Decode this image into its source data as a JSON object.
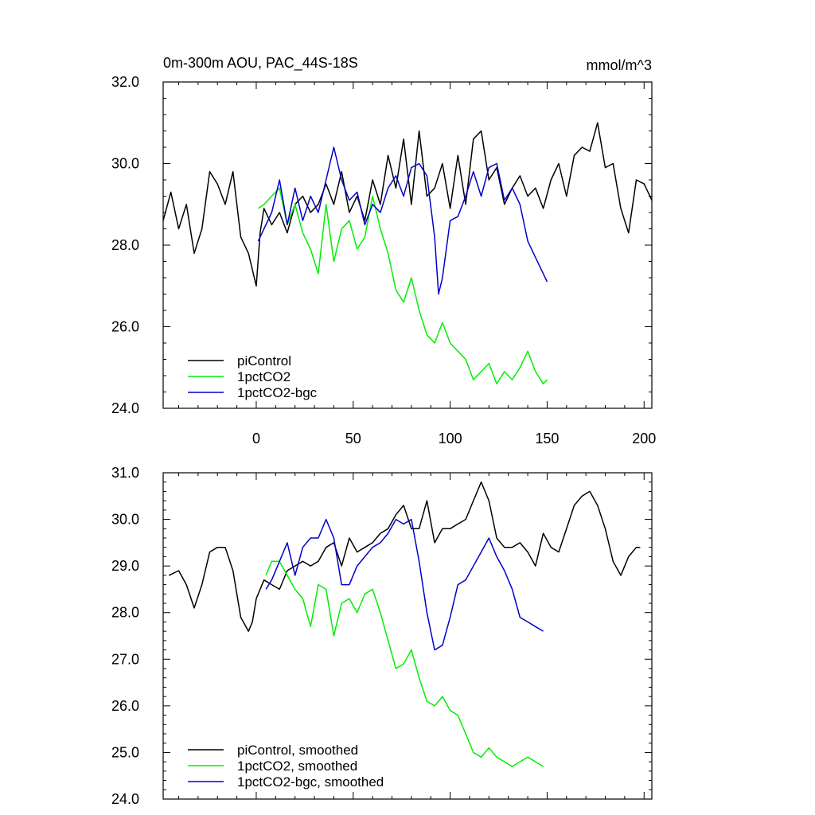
{
  "colors": {
    "piControl": "#000000",
    "1pctCO2": "#00ee00",
    "1pctCO2-bgc": "#0000cc"
  },
  "chart_data": [
    {
      "type": "line",
      "title": "0m-300m AOU, PAC_44S-18S",
      "units": "mmol/m^3",
      "xlabel": "",
      "ylabel": "",
      "xlim": [
        -48,
        204
      ],
      "ylim": [
        24.0,
        32.0
      ],
      "yticks": [
        {
          "v": 24,
          "label": "24.0"
        },
        {
          "v": 26,
          "label": "26.0"
        },
        {
          "v": 28,
          "label": "28.0"
        },
        {
          "v": 30,
          "label": "30.0"
        },
        {
          "v": 32,
          "label": "32.0"
        }
      ],
      "xticks": [
        {
          "v": 0,
          "label": "0"
        },
        {
          "v": 50,
          "label": "50"
        },
        {
          "v": 100,
          "label": "100"
        },
        {
          "v": 150,
          "label": "150"
        },
        {
          "v": 200,
          "label": "200"
        }
      ],
      "legend_position": "bottom-left",
      "series": [
        {
          "name": "piControl",
          "color_key": "piControl",
          "x": [
            -48,
            -44,
            -40,
            -36,
            -32,
            -28,
            -24,
            -20,
            -16,
            -12,
            -8,
            -4,
            0,
            2,
            4,
            8,
            12,
            16,
            20,
            24,
            28,
            32,
            36,
            40,
            44,
            48,
            52,
            56,
            60,
            64,
            68,
            72,
            76,
            80,
            84,
            88,
            92,
            96,
            100,
            104,
            108,
            112,
            116,
            120,
            124,
            128,
            132,
            136,
            140,
            144,
            148,
            152,
            156,
            160,
            164,
            168,
            172,
            176,
            180,
            184,
            188,
            192,
            196,
            200,
            204
          ],
          "y": [
            28.6,
            29.3,
            28.4,
            29.0,
            27.8,
            28.4,
            29.8,
            29.5,
            29.0,
            29.8,
            28.2,
            27.8,
            27.0,
            28.3,
            28.9,
            28.5,
            28.8,
            28.3,
            29.0,
            29.2,
            28.8,
            29.0,
            29.5,
            29.0,
            29.8,
            28.8,
            29.2,
            28.6,
            29.6,
            29.0,
            30.2,
            29.4,
            30.6,
            29.0,
            30.8,
            29.2,
            29.4,
            30.0,
            28.9,
            30.2,
            29.0,
            30.6,
            30.8,
            29.6,
            29.9,
            29.0,
            29.4,
            29.7,
            29.2,
            29.4,
            28.9,
            29.6,
            30.0,
            29.2,
            30.2,
            30.4,
            30.3,
            31.0,
            29.9,
            30.0,
            28.9,
            28.3,
            29.6,
            29.5,
            29.1
          ]
        },
        {
          "name": "1pctCO2",
          "color_key": "1pctCO2",
          "x": [
            1,
            4,
            8,
            12,
            16,
            20,
            24,
            28,
            32,
            36,
            40,
            44,
            48,
            52,
            56,
            60,
            64,
            68,
            72,
            76,
            80,
            84,
            88,
            92,
            96,
            100,
            104,
            108,
            112,
            116,
            120,
            124,
            128,
            132,
            136,
            140,
            144,
            148,
            150
          ],
          "y": [
            28.9,
            29.0,
            29.2,
            29.4,
            28.5,
            29.0,
            28.3,
            27.9,
            27.3,
            29.0,
            27.6,
            28.4,
            28.6,
            27.9,
            28.2,
            29.2,
            28.4,
            27.8,
            26.9,
            26.6,
            27.2,
            26.4,
            25.8,
            25.6,
            26.1,
            25.6,
            25.4,
            25.2,
            24.7,
            24.9,
            25.1,
            24.6,
            24.9,
            24.7,
            25.0,
            25.4,
            24.9,
            24.6,
            24.7
          ]
        },
        {
          "name": "1pctCO2-bgc",
          "color_key": "1pctCO2-bgc",
          "x": [
            1,
            4,
            8,
            12,
            16,
            20,
            24,
            28,
            32,
            36,
            40,
            44,
            48,
            52,
            56,
            60,
            64,
            68,
            72,
            76,
            80,
            84,
            88,
            92,
            94,
            96,
            100,
            104,
            108,
            112,
            116,
            120,
            124,
            128,
            132,
            136,
            140,
            144,
            148,
            150
          ],
          "y": [
            28.1,
            28.4,
            28.8,
            29.6,
            28.5,
            29.4,
            28.6,
            29.2,
            28.8,
            29.6,
            30.4,
            29.6,
            29.1,
            29.3,
            28.5,
            29.0,
            28.8,
            29.4,
            29.7,
            29.2,
            29.9,
            30.0,
            29.7,
            28.2,
            26.8,
            27.2,
            28.6,
            28.7,
            29.2,
            29.8,
            29.2,
            29.9,
            30.0,
            29.1,
            29.4,
            29.0,
            28.1,
            27.7,
            27.3,
            27.1
          ]
        }
      ]
    },
    {
      "type": "line",
      "title": "",
      "xlabel": "",
      "ylabel": "",
      "xlim": [
        -48,
        204
      ],
      "ylim": [
        24.0,
        31.0
      ],
      "yticks": [
        {
          "v": 24,
          "label": "24.0"
        },
        {
          "v": 25,
          "label": "25.0"
        },
        {
          "v": 26,
          "label": "26.0"
        },
        {
          "v": 27,
          "label": "27.0"
        },
        {
          "v": 28,
          "label": "28.0"
        },
        {
          "v": 29,
          "label": "29.0"
        },
        {
          "v": 30,
          "label": "30.0"
        },
        {
          "v": 31,
          "label": "31.0"
        }
      ],
      "xticks": [
        {
          "v": 0,
          "label": ""
        },
        {
          "v": 50,
          "label": ""
        },
        {
          "v": 100,
          "label": ""
        },
        {
          "v": 150,
          "label": ""
        },
        {
          "v": 200,
          "label": ""
        }
      ],
      "legend_position": "bottom-left",
      "series": [
        {
          "name": "piControl, smoothed",
          "color_key": "piControl",
          "x": [
            -45,
            -40,
            -36,
            -32,
            -28,
            -24,
            -20,
            -16,
            -12,
            -8,
            -4,
            -2,
            0,
            4,
            8,
            12,
            16,
            20,
            24,
            28,
            32,
            36,
            40,
            44,
            48,
            52,
            56,
            60,
            64,
            68,
            72,
            76,
            80,
            84,
            88,
            92,
            96,
            100,
            104,
            108,
            112,
            116,
            120,
            124,
            128,
            132,
            136,
            140,
            144,
            148,
            152,
            156,
            160,
            164,
            168,
            172,
            176,
            180,
            184,
            188,
            192,
            196,
            198
          ],
          "y": [
            28.8,
            28.9,
            28.6,
            28.1,
            28.6,
            29.3,
            29.4,
            29.4,
            28.9,
            27.9,
            27.6,
            27.8,
            28.3,
            28.7,
            28.6,
            28.5,
            28.9,
            29.0,
            29.1,
            29.0,
            29.1,
            29.4,
            29.5,
            29.0,
            29.6,
            29.3,
            29.4,
            29.5,
            29.7,
            29.8,
            30.1,
            30.3,
            29.8,
            29.8,
            30.4,
            29.5,
            29.8,
            29.8,
            29.9,
            30.0,
            30.4,
            30.8,
            30.4,
            29.6,
            29.4,
            29.4,
            29.5,
            29.3,
            29.0,
            29.7,
            29.4,
            29.3,
            29.8,
            30.3,
            30.5,
            30.6,
            30.3,
            29.8,
            29.1,
            28.8,
            29.2,
            29.4,
            29.4
          ]
        },
        {
          "name": "1pctCO2, smoothed",
          "color_key": "1pctCO2",
          "x": [
            5,
            8,
            12,
            16,
            20,
            24,
            28,
            32,
            36,
            40,
            44,
            48,
            52,
            56,
            60,
            64,
            68,
            72,
            76,
            80,
            84,
            88,
            92,
            96,
            100,
            104,
            108,
            112,
            116,
            120,
            124,
            128,
            132,
            136,
            140,
            144,
            148
          ],
          "y": [
            28.8,
            29.1,
            29.1,
            28.8,
            28.5,
            28.3,
            27.7,
            28.6,
            28.5,
            27.5,
            28.2,
            28.3,
            28.0,
            28.4,
            28.5,
            28.0,
            27.4,
            26.8,
            26.9,
            27.2,
            26.6,
            26.1,
            26.0,
            26.2,
            25.9,
            25.8,
            25.4,
            25.0,
            24.9,
            25.1,
            24.9,
            24.8,
            24.7,
            24.8,
            24.9,
            24.8,
            24.7
          ]
        },
        {
          "name": "1pctCO2-bgc, smoothed",
          "color_key": "1pctCO2-bgc",
          "x": [
            5,
            8,
            12,
            16,
            20,
            24,
            28,
            32,
            36,
            40,
            44,
            48,
            52,
            56,
            60,
            64,
            68,
            72,
            76,
            80,
            84,
            88,
            92,
            96,
            100,
            104,
            108,
            112,
            116,
            120,
            124,
            128,
            132,
            136,
            140,
            144,
            148
          ],
          "y": [
            28.5,
            28.7,
            29.1,
            29.5,
            28.8,
            29.4,
            29.6,
            29.6,
            30.0,
            29.6,
            28.6,
            28.6,
            29.0,
            29.2,
            29.4,
            29.5,
            29.7,
            30.0,
            29.9,
            30.0,
            29.1,
            28.0,
            27.2,
            27.3,
            27.9,
            28.6,
            28.7,
            29.0,
            29.3,
            29.6,
            29.2,
            28.9,
            28.5,
            27.9,
            27.8,
            27.7,
            27.6
          ]
        }
      ]
    }
  ]
}
